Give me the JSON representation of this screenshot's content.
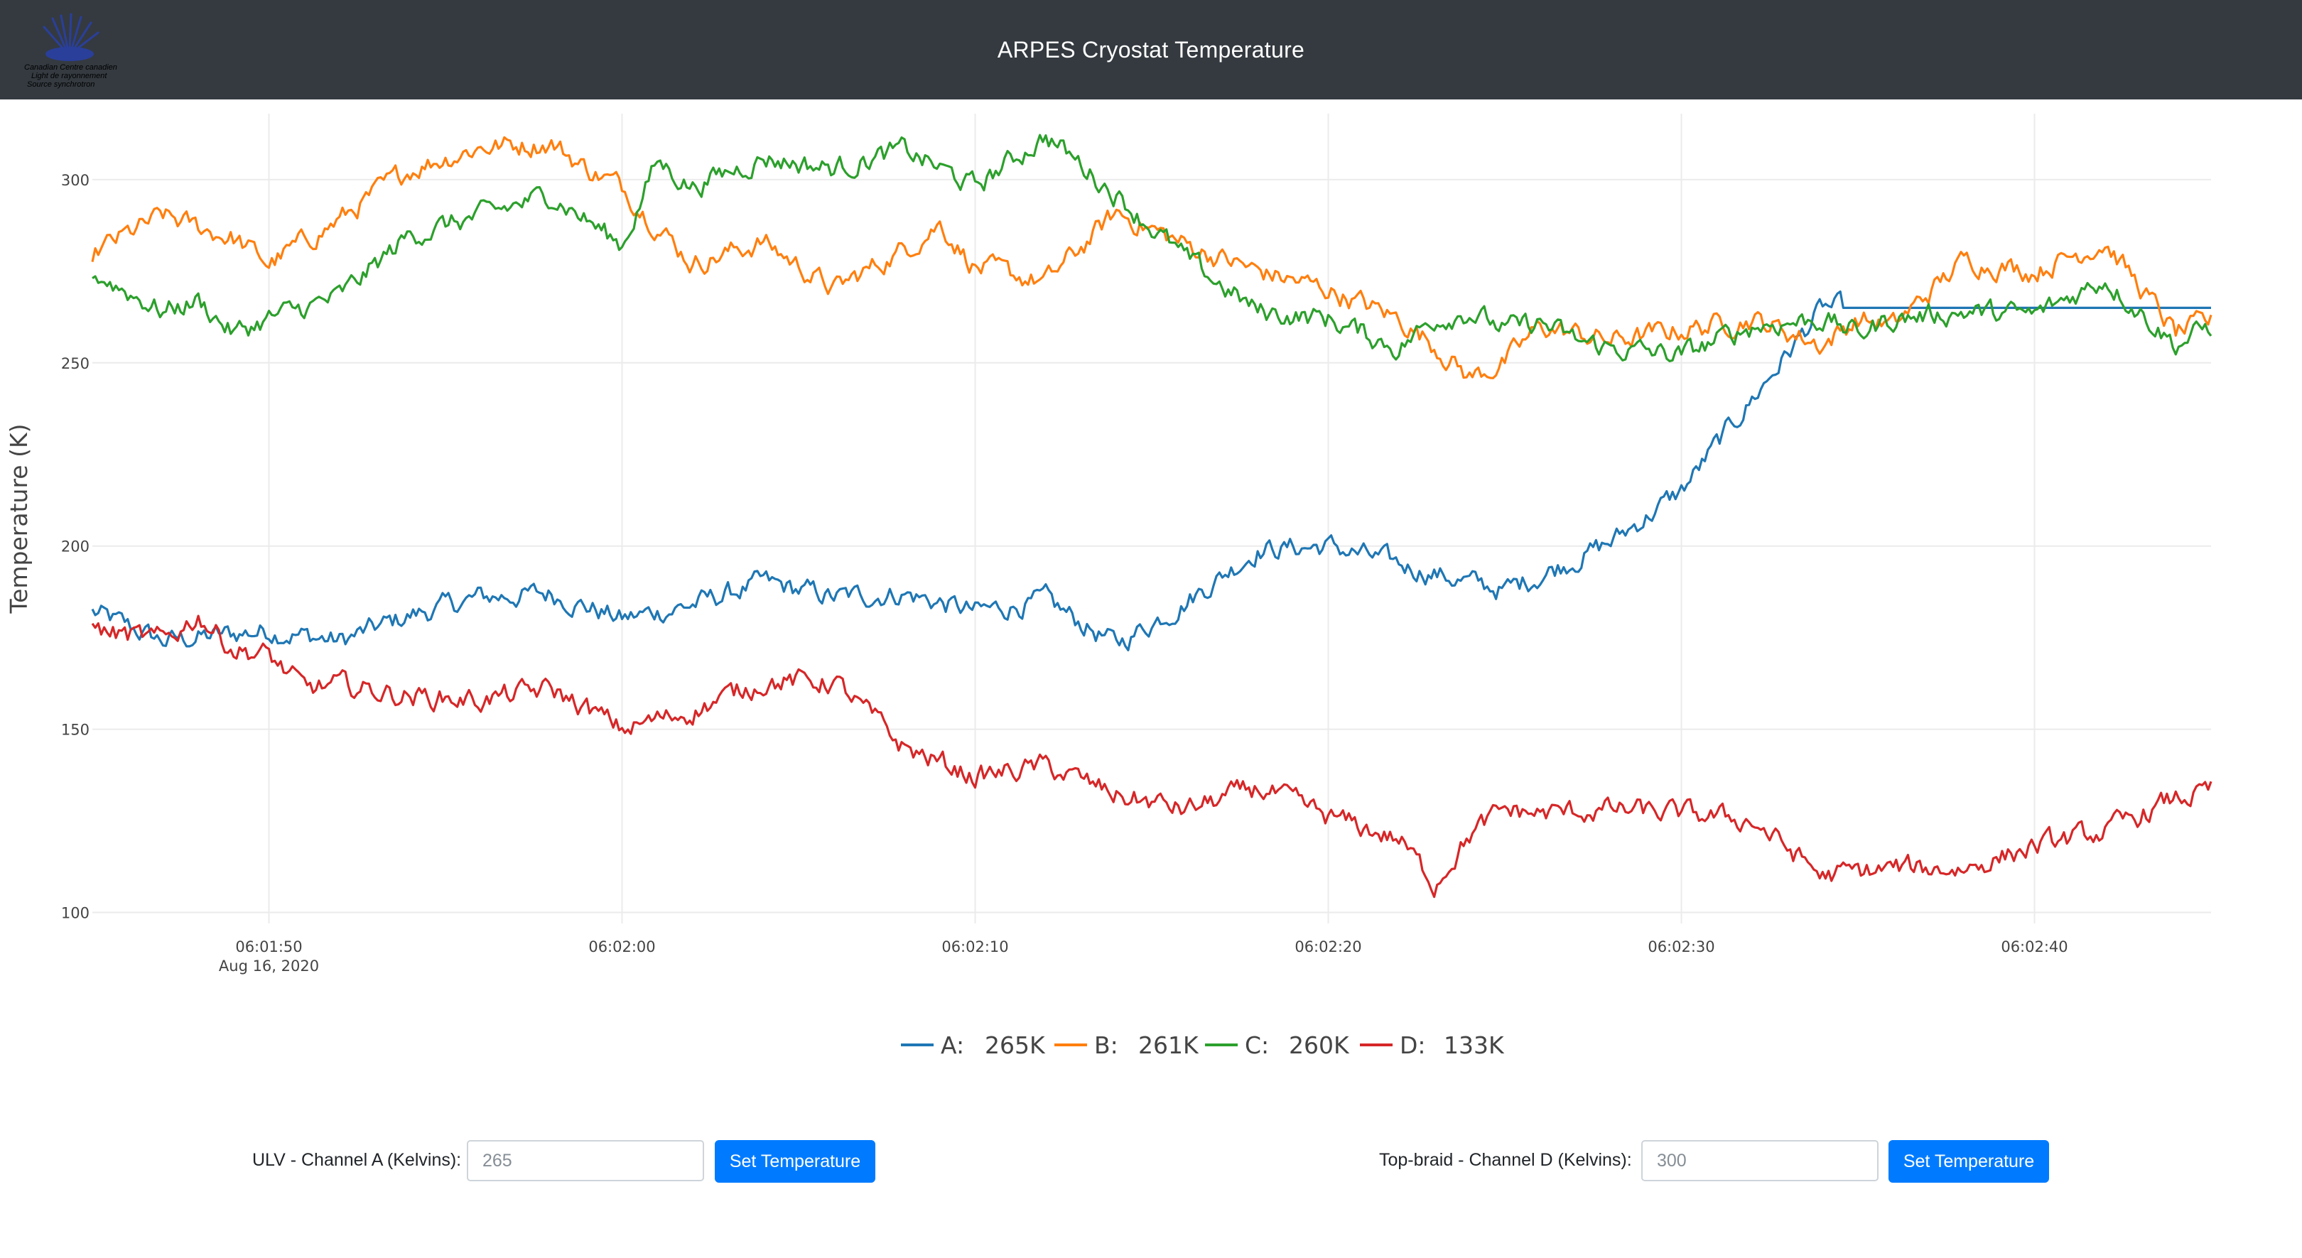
{
  "header": {
    "title": "ARPES Cryostat Temperature"
  },
  "logo": {
    "icon": "canadian-light-source-logo",
    "line1": "Canadian Centre canadien",
    "line2": "Light de rayonnement",
    "line3": "Source synchrotron"
  },
  "chart_data": {
    "type": "line",
    "ylabel": "Temperature (K)",
    "xlabel": "",
    "ylim": [
      97,
      318
    ],
    "xlim": [
      -5,
      55
    ],
    "x_tick_values": [
      0,
      10,
      20,
      30,
      40,
      50
    ],
    "x_tick_labels": [
      "06:01:50",
      "06:02:00",
      "06:02:10",
      "06:02:20",
      "06:02:30",
      "06:02:40"
    ],
    "x_tick_sublabel": "Aug 16, 2020",
    "y_ticks": [
      100,
      150,
      200,
      250,
      300
    ],
    "grid": true,
    "legend_position": "bottom-center",
    "series": [
      {
        "name": "A",
        "legend_value": "265K",
        "color": "#1f77b4",
        "x": [
          -5,
          -3,
          0,
          2,
          4,
          6,
          8,
          10,
          12,
          14,
          16,
          18,
          20,
          22,
          24,
          26,
          28,
          30,
          32,
          34,
          35,
          36,
          38,
          40,
          42,
          44,
          46,
          48,
          50,
          52,
          54,
          55
        ],
        "y": [
          182,
          174,
          177,
          174,
          181,
          186,
          187,
          180,
          184,
          190,
          186,
          187,
          182,
          185,
          173,
          185,
          199,
          200,
          195,
          190,
          188,
          192,
          201,
          215,
          240,
          265,
          265,
          265,
          265,
          265,
          265,
          265
        ]
      },
      {
        "name": "B",
        "legend_value": "261K",
        "color": "#ff7f0e",
        "x": [
          -5,
          -3,
          -1,
          0,
          2,
          4,
          6,
          8,
          9,
          10,
          12,
          14,
          16,
          18,
          19,
          20,
          22,
          24,
          26,
          28,
          30,
          32,
          33,
          34,
          35,
          36,
          37,
          38,
          40,
          42,
          44,
          45,
          46,
          48,
          50,
          52,
          54,
          55
        ],
        "y": [
          280,
          290,
          284,
          277,
          289,
          303,
          309,
          310,
          303,
          298,
          277,
          283,
          270,
          281,
          288,
          276,
          272,
          291,
          282,
          275,
          270,
          262,
          255,
          246,
          250,
          260,
          258,
          256,
          259,
          262,
          255,
          262,
          260,
          278,
          275,
          283,
          258,
          261
        ]
      },
      {
        "name": "C",
        "legend_value": "260K",
        "color": "#2ca02c",
        "x": [
          -5,
          -3,
          -2,
          -1,
          0,
          2,
          4,
          6,
          8,
          9,
          10,
          11,
          12,
          14,
          16,
          18,
          20,
          22,
          24,
          26,
          28,
          30,
          32,
          33,
          34,
          35,
          36,
          37,
          38,
          40,
          42,
          44,
          45,
          46,
          48,
          50,
          52,
          54,
          55
        ],
        "y": [
          275,
          264,
          267,
          258,
          262,
          268,
          285,
          290,
          296,
          289,
          282,
          305,
          298,
          306,
          303,
          308,
          298,
          312,
          296,
          278,
          264,
          262,
          254,
          262,
          264,
          259,
          261,
          256,
          254,
          252,
          260,
          262,
          258,
          262,
          264,
          263,
          273,
          255,
          260
        ]
      },
      {
        "name": "D",
        "legend_value": "133K",
        "color": "#d62728",
        "x": [
          -5,
          -3,
          -2,
          -1,
          0,
          1,
          2,
          4,
          6,
          8,
          10,
          12,
          14,
          16,
          18,
          20,
          22,
          24,
          26,
          28,
          30,
          32,
          33,
          34,
          35,
          36,
          38,
          40,
          42,
          44,
          46,
          48,
          50,
          52,
          54,
          55
        ],
        "y": [
          177,
          174,
          181,
          172,
          170,
          161,
          162,
          159,
          158,
          161,
          150,
          155,
          163,
          163,
          145,
          137,
          140,
          132,
          128,
          134,
          126,
          120,
          108,
          121,
          128,
          127,
          128,
          127,
          125,
          110,
          112,
          112,
          118,
          122,
          131,
          133
        ]
      }
    ]
  },
  "controls": {
    "left": {
      "label": "ULV - Channel A (Kelvins):",
      "placeholder": "265",
      "button": "Set Temperature"
    },
    "right": {
      "label": "Top-braid - Channel D (Kelvins):",
      "placeholder": "300",
      "button": "Set Temperature"
    }
  }
}
